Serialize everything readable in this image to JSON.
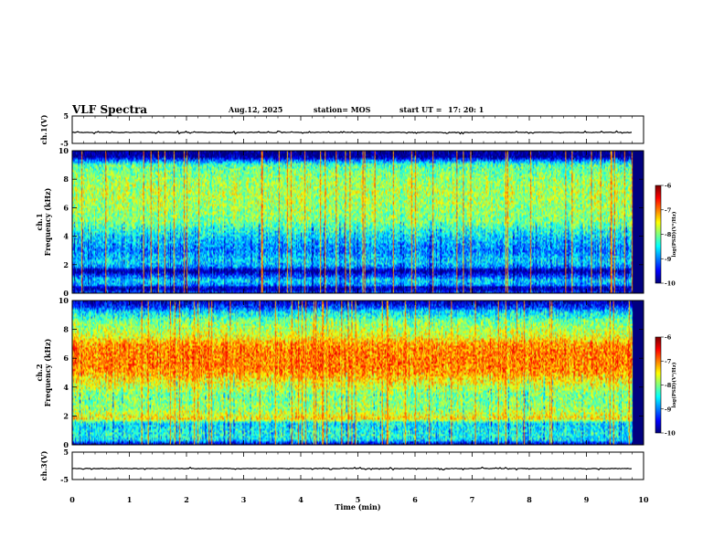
{
  "header": {
    "title": "VLF Spectra",
    "date": "Aug.12, 2025",
    "station": "station= MOS",
    "start_label": "start  UT =",
    "start_time": "17: 20: 1"
  },
  "chart_data": [
    {
      "type": "line",
      "panel": "ch1-waveform",
      "ylabel": "ch.1(V)",
      "ylim": [
        -5,
        5
      ],
      "yticks": [
        5,
        -5
      ],
      "xlim": [
        0,
        10
      ],
      "series": [
        {
          "name": "ch.1",
          "x": [
            0,
            9.8
          ],
          "values": [
            -1,
            -1
          ]
        }
      ]
    },
    {
      "type": "heatmap",
      "panel": "ch1-spectrogram",
      "ylabel": "ch.1\nFrequency (kHz)",
      "ylim": [
        0,
        10
      ],
      "yticks": [
        0,
        2,
        4,
        6,
        8,
        10
      ],
      "xlim": [
        0,
        10
      ],
      "data_end_min": 9.8,
      "zlim": [
        -10,
        -6
      ],
      "colorbar_ticks": [
        -6,
        -7,
        -8,
        -9,
        -10
      ],
      "colorbar_label": "log(PSD)(V²/Hz)",
      "band_profile": {
        "freq_khz": [
          0,
          0.4,
          0.5,
          0.9,
          1.6,
          1.8,
          2.2,
          3,
          4,
          5,
          6,
          7,
          8,
          9,
          9.3,
          9.6,
          10
        ],
        "log_psd": [
          -9.2,
          -10,
          -9.0,
          -8.6,
          -10,
          -9.0,
          -8.6,
          -9.0,
          -8.6,
          -8.0,
          -7.9,
          -7.8,
          -7.9,
          -8.2,
          -9.0,
          -10,
          -10
        ]
      }
    },
    {
      "type": "heatmap",
      "panel": "ch2-spectrogram",
      "ylabel": "ch.2\nFrequency (kHz)",
      "ylim": [
        0,
        10
      ],
      "yticks": [
        0,
        2,
        4,
        6,
        8,
        10
      ],
      "xlim": [
        0,
        10
      ],
      "data_end_min": 9.8,
      "zlim": [
        -10,
        -6
      ],
      "colorbar_ticks": [
        -6,
        -7,
        -8,
        -9,
        -10
      ],
      "colorbar_label": "log(PSD)(V²/Hz)",
      "band_profile": {
        "freq_khz": [
          0,
          0.3,
          0.6,
          1.5,
          1.8,
          2.5,
          3.5,
          4.5,
          5,
          5.5,
          6.5,
          7,
          7.5,
          8.5,
          9.2,
          9.6,
          10
        ],
        "log_psd": [
          -10,
          -8.6,
          -8.4,
          -8.6,
          -7.4,
          -7.9,
          -8.0,
          -7.4,
          -7.1,
          -7.0,
          -7.0,
          -7.1,
          -7.6,
          -8.0,
          -8.6,
          -9.4,
          -9.8
        ]
      }
    },
    {
      "type": "line",
      "panel": "ch3-waveform",
      "ylabel": "ch.3(V)",
      "ylim": [
        -5,
        5
      ],
      "yticks": [
        5,
        -5
      ],
      "xlim": [
        0,
        10
      ],
      "xlabel": "Time  (min)",
      "xticks": [
        0,
        1,
        2,
        3,
        4,
        5,
        6,
        7,
        8,
        9,
        10
      ],
      "series": [
        {
          "name": "ch.3",
          "x": [
            0,
            9.8
          ],
          "values": [
            -1,
            -1
          ]
        }
      ]
    }
  ]
}
